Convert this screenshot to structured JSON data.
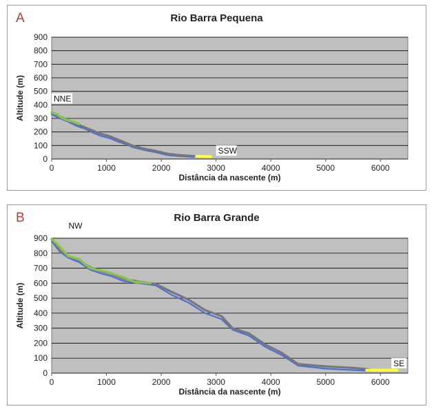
{
  "chart_data": [
    {
      "type": "line",
      "panel_label": "A",
      "title": "Rio Barra Pequena",
      "xlabel": "Distância da nascente (m)",
      "ylabel": "Altitude (m)",
      "xlim": [
        0,
        6500
      ],
      "ylim": [
        0,
        900
      ],
      "xticks": [
        0,
        1000,
        2000,
        3000,
        4000,
        5000,
        6000
      ],
      "yticks": [
        0,
        100,
        200,
        300,
        400,
        500,
        600,
        700,
        800,
        900
      ],
      "grid": true,
      "annotations": [
        {
          "text": "NNE",
          "x": 0,
          "y": 430
        },
        {
          "text": "SSW",
          "x": 3000,
          "y": 45
        }
      ],
      "series": [
        {
          "color": "#4a6fd6",
          "x": [
            0,
            150,
            300,
            450,
            600,
            750,
            900,
            1050,
            1200,
            1350,
            1500,
            1700,
            1900,
            2100,
            2300,
            2600
          ],
          "y": [
            330,
            300,
            275,
            245,
            225,
            195,
            170,
            155,
            130,
            110,
            85,
            65,
            50,
            30,
            22,
            15
          ]
        },
        {
          "color": "#777777",
          "x": [
            0,
            150,
            300,
            450,
            600,
            750,
            900,
            1050,
            1200,
            1350,
            1500,
            1700,
            1900,
            2100,
            2300,
            2600
          ],
          "y": [
            345,
            315,
            285,
            260,
            235,
            210,
            185,
            170,
            145,
            120,
            95,
            75,
            60,
            40,
            30,
            22
          ]
        },
        {
          "color": "#8bc34a",
          "x": [
            0,
            100,
            200,
            300,
            400,
            500
          ],
          "y": [
            345,
            330,
            300,
            285,
            275,
            260
          ]
        },
        {
          "color": "#ffff33",
          "x": [
            2650,
            2750,
            2900
          ],
          "y": [
            22,
            20,
            18
          ]
        }
      ]
    },
    {
      "type": "line",
      "panel_label": "B",
      "title": "Rio Barra Grande",
      "xlabel": "Distância da nascente (m)",
      "ylabel": "Altitude (m)",
      "xlim": [
        0,
        6500
      ],
      "ylim": [
        0,
        900
      ],
      "xticks": [
        0,
        1000,
        2000,
        3000,
        4000,
        5000,
        6000
      ],
      "yticks": [
        0,
        100,
        200,
        300,
        400,
        500,
        600,
        700,
        800,
        900
      ],
      "grid": true,
      "annotations": [
        {
          "text": "NW",
          "x": 270,
          "y": 970
        },
        {
          "text": "SE",
          "x": 6200,
          "y": 50
        }
      ],
      "series": [
        {
          "color": "#4a6fd6",
          "x": [
            0,
            150,
            300,
            500,
            700,
            900,
            1100,
            1300,
            1600,
            1900,
            2200,
            2500,
            2800,
            3100,
            3300,
            3600,
            3900,
            4200,
            4500,
            5000,
            5500,
            5800
          ],
          "y": [
            880,
            810,
            770,
            740,
            690,
            665,
            645,
            615,
            600,
            585,
            520,
            470,
            400,
            360,
            290,
            250,
            175,
            120,
            50,
            30,
            20,
            15
          ]
        },
        {
          "color": "#777777",
          "x": [
            0,
            150,
            300,
            500,
            700,
            900,
            1100,
            1300,
            1600,
            1900,
            2200,
            2500,
            2800,
            3100,
            3300,
            3600,
            3900,
            4200,
            4500,
            5000,
            5500,
            5800
          ],
          "y": [
            895,
            820,
            780,
            755,
            705,
            680,
            660,
            630,
            610,
            595,
            540,
            490,
            420,
            380,
            300,
            265,
            190,
            135,
            60,
            45,
            35,
            25
          ]
        },
        {
          "color": "#8bc34a",
          "x": [
            0,
            100,
            300,
            500,
            700,
            900,
            1100,
            1300,
            1500,
            1800
          ],
          "y": [
            895,
            860,
            780,
            760,
            700,
            685,
            665,
            640,
            610,
            600
          ]
        },
        {
          "color": "#ffff33",
          "x": [
            5750,
            6000,
            6300
          ],
          "y": [
            20,
            20,
            20
          ]
        }
      ]
    }
  ]
}
